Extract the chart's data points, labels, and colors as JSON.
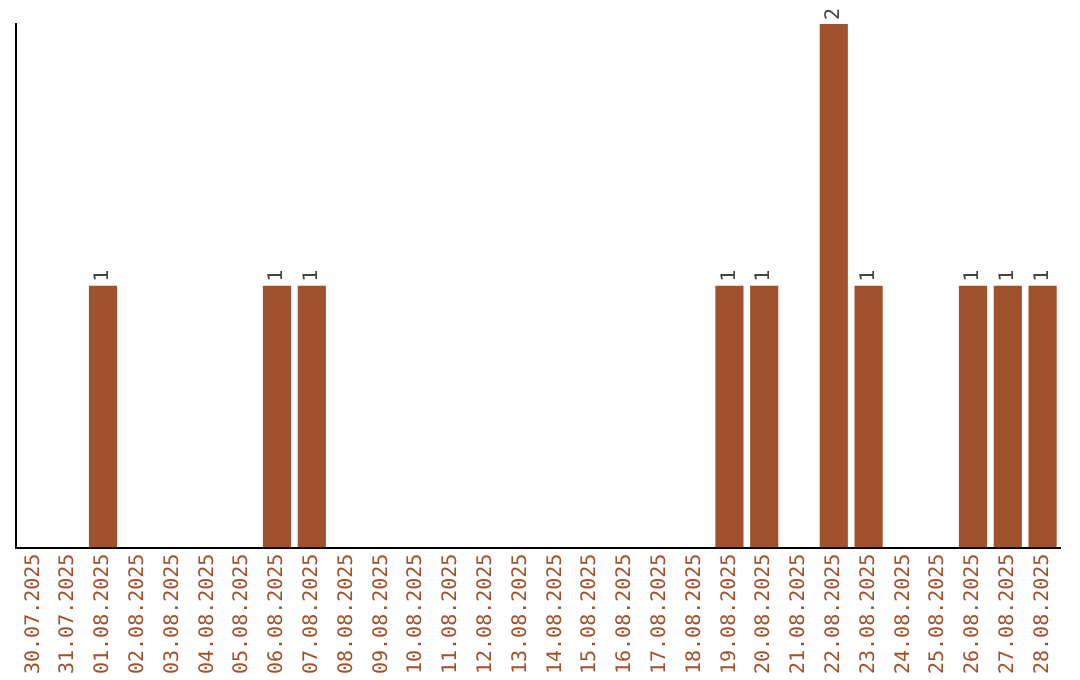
{
  "chart_data": {
    "type": "bar",
    "categories": [
      "30.07.2025",
      "31.07.2025",
      "01.08.2025",
      "02.08.2025",
      "03.08.2025",
      "04.08.2025",
      "05.08.2025",
      "06.08.2025",
      "07.08.2025",
      "08.08.2025",
      "09.08.2025",
      "10.08.2025",
      "11.08.2025",
      "12.08.2025",
      "13.08.2025",
      "14.08.2025",
      "15.08.2025",
      "16.08.2025",
      "17.08.2025",
      "18.08.2025",
      "19.08.2025",
      "20.08.2025",
      "21.08.2025",
      "22.08.2025",
      "23.08.2025",
      "24.08.2025",
      "25.08.2025",
      "26.08.2025",
      "27.08.2025",
      "28.08.2025"
    ],
    "values": [
      0,
      0,
      1,
      0,
      0,
      0,
      0,
      1,
      1,
      0,
      0,
      0,
      0,
      0,
      0,
      0,
      0,
      0,
      0,
      0,
      1,
      1,
      0,
      2,
      1,
      0,
      0,
      1,
      1,
      1
    ],
    "value_labels": [
      null,
      null,
      "1",
      null,
      null,
      null,
      null,
      "1",
      "1",
      null,
      null,
      null,
      null,
      null,
      null,
      null,
      null,
      null,
      null,
      null,
      "1",
      "1",
      null,
      "2",
      "1",
      null,
      null,
      "1",
      "1",
      "1"
    ],
    "color": "#a0522d",
    "ylim": [
      0,
      2
    ],
    "grid": false,
    "legend": false,
    "tick_labels": "x"
  }
}
